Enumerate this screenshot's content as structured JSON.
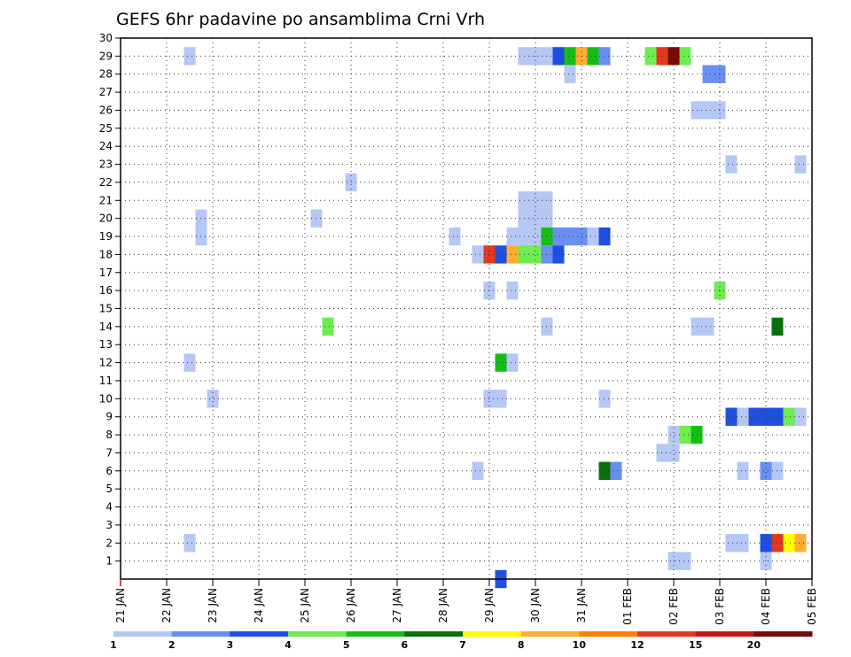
{
  "chart_data": {
    "type": "heatmap",
    "title": "GEFS 6hr padavine po ansamblima Crni Vrh",
    "xlabel": "",
    "ylabel": "",
    "x_tick_labels": [
      "21 JAN",
      "22 JAN",
      "23 JAN",
      "24 JAN",
      "25 JAN",
      "26 JAN",
      "27 JAN",
      "28 JAN",
      "29 JAN",
      "30 JAN",
      "31 JAN",
      "01 FEB",
      "02 FEB",
      "03 FEB",
      "04 FEB",
      "05 FEB"
    ],
    "y_tick_labels": [
      "1",
      "2",
      "3",
      "4",
      "5",
      "6",
      "7",
      "8",
      "9",
      "10",
      "11",
      "12",
      "13",
      "14",
      "15",
      "16",
      "17",
      "18",
      "19",
      "20",
      "21",
      "22",
      "23",
      "24",
      "25",
      "26",
      "27",
      "28",
      "29",
      "30"
    ],
    "ylim": [
      0,
      30
    ],
    "grid": true,
    "colorbar": {
      "colors": [
        "#b4c7f5",
        "#6a8ff2",
        "#1f4fe0",
        "#6fec4f",
        "#14be14",
        "#0b6e0b",
        "#ffff00",
        "#ffad33",
        "#ff7f00",
        "#e23a1e",
        "#c01a1a",
        "#7a0a0a"
      ],
      "labels": [
        "1",
        "2",
        "3",
        "4",
        "5",
        "6",
        "7",
        "8",
        "10",
        "12",
        "15",
        "20"
      ]
    },
    "cells": [
      {
        "m": 29,
        "t": [
          6
        ],
        "c": 0
      },
      {
        "m": 29,
        "t": [
          35,
          36,
          37
        ],
        "c": 0
      },
      {
        "m": 29,
        "t": [
          38
        ],
        "c": 2
      },
      {
        "m": 29,
        "t": [
          39
        ],
        "c": 4
      },
      {
        "m": 29,
        "t": [
          40
        ],
        "c": 7
      },
      {
        "m": 29,
        "t": [
          41
        ],
        "c": 4
      },
      {
        "m": 29,
        "t": [
          42
        ],
        "c": 1
      },
      {
        "m": 29,
        "t": [
          46
        ],
        "c": 3
      },
      {
        "m": 29,
        "t": [
          47
        ],
        "c": 9
      },
      {
        "m": 29,
        "t": [
          48
        ],
        "c": 11
      },
      {
        "m": 29,
        "t": [
          49
        ],
        "c": 3
      },
      {
        "m": 28,
        "t": [
          39
        ],
        "c": 0
      },
      {
        "m": 28,
        "t": [
          51,
          52
        ],
        "c": 1
      },
      {
        "m": 26,
        "t": [
          50,
          51,
          52
        ],
        "c": 0
      },
      {
        "m": 23,
        "t": [
          53
        ],
        "c": 0
      },
      {
        "m": 23,
        "t": [
          59
        ],
        "c": 0
      },
      {
        "m": 22,
        "t": [
          20
        ],
        "c": 0
      },
      {
        "m": 21,
        "t": [
          35,
          36,
          37
        ],
        "c": 0
      },
      {
        "m": 20,
        "t": [
          7
        ],
        "c": 0
      },
      {
        "m": 20,
        "t": [
          17
        ],
        "c": 0
      },
      {
        "m": 20,
        "t": [
          35,
          36,
          37
        ],
        "c": 0
      },
      {
        "m": 19,
        "t": [
          7
        ],
        "c": 0
      },
      {
        "m": 19,
        "t": [
          29
        ],
        "c": 0
      },
      {
        "m": 19,
        "t": [
          34,
          35,
          36
        ],
        "c": 0
      },
      {
        "m": 19,
        "t": [
          37
        ],
        "c": 4
      },
      {
        "m": 19,
        "t": [
          38,
          39,
          40
        ],
        "c": 1
      },
      {
        "m": 19,
        "t": [
          41
        ],
        "c": 0
      },
      {
        "m": 19,
        "t": [
          42
        ],
        "c": 2
      },
      {
        "m": 18,
        "t": [
          31
        ],
        "c": 0
      },
      {
        "m": 18,
        "t": [
          32
        ],
        "c": 9
      },
      {
        "m": 18,
        "t": [
          33
        ],
        "c": 2
      },
      {
        "m": 18,
        "t": [
          34
        ],
        "c": 7
      },
      {
        "m": 18,
        "t": [
          35,
          36
        ],
        "c": 3
      },
      {
        "m": 18,
        "t": [
          37
        ],
        "c": 1
      },
      {
        "m": 18,
        "t": [
          38
        ],
        "c": 2
      },
      {
        "m": 16,
        "t": [
          32
        ],
        "c": 0
      },
      {
        "m": 16,
        "t": [
          34
        ],
        "c": 0
      },
      {
        "m": 16,
        "t": [
          52
        ],
        "c": 3
      },
      {
        "m": 14,
        "t": [
          18
        ],
        "c": 3
      },
      {
        "m": 14,
        "t": [
          37
        ],
        "c": 0
      },
      {
        "m": 14,
        "t": [
          50,
          51
        ],
        "c": 0
      },
      {
        "m": 14,
        "t": [
          57
        ],
        "c": 5
      },
      {
        "m": 12,
        "t": [
          6
        ],
        "c": 0
      },
      {
        "m": 12,
        "t": [
          33
        ],
        "c": 4
      },
      {
        "m": 12,
        "t": [
          34
        ],
        "c": 0
      },
      {
        "m": 10,
        "t": [
          8
        ],
        "c": 0
      },
      {
        "m": 10,
        "t": [
          32,
          33
        ],
        "c": 0
      },
      {
        "m": 10,
        "t": [
          42
        ],
        "c": 0
      },
      {
        "m": 9,
        "t": [
          53
        ],
        "c": 2
      },
      {
        "m": 9,
        "t": [
          54
        ],
        "c": 0
      },
      {
        "m": 9,
        "t": [
          55,
          56,
          57
        ],
        "c": 2
      },
      {
        "m": 9,
        "t": [
          58
        ],
        "c": 3
      },
      {
        "m": 9,
        "t": [
          59
        ],
        "c": 0
      },
      {
        "m": 8,
        "t": [
          48
        ],
        "c": 0
      },
      {
        "m": 8,
        "t": [
          49
        ],
        "c": 3
      },
      {
        "m": 8,
        "t": [
          50
        ],
        "c": 4
      },
      {
        "m": 7,
        "t": [
          47,
          48
        ],
        "c": 0
      },
      {
        "m": 6,
        "t": [
          31
        ],
        "c": 0
      },
      {
        "m": 6,
        "t": [
          42
        ],
        "c": 5
      },
      {
        "m": 6,
        "t": [
          43
        ],
        "c": 1
      },
      {
        "m": 6,
        "t": [
          54
        ],
        "c": 0
      },
      {
        "m": 6,
        "t": [
          56
        ],
        "c": 1
      },
      {
        "m": 6,
        "t": [
          57
        ],
        "c": 0
      },
      {
        "m": 2,
        "t": [
          6
        ],
        "c": 0
      },
      {
        "m": 2,
        "t": [
          53,
          54
        ],
        "c": 0
      },
      {
        "m": 2,
        "t": [
          56
        ],
        "c": 2
      },
      {
        "m": 2,
        "t": [
          57
        ],
        "c": 9
      },
      {
        "m": 2,
        "t": [
          58
        ],
        "c": 6
      },
      {
        "m": 2,
        "t": [
          59
        ],
        "c": 7
      },
      {
        "m": 1,
        "t": [
          48,
          49
        ],
        "c": 0
      },
      {
        "m": 1,
        "t": [
          56
        ],
        "c": 0
      },
      {
        "m": 0,
        "t": [
          33
        ],
        "c": 2
      }
    ]
  }
}
